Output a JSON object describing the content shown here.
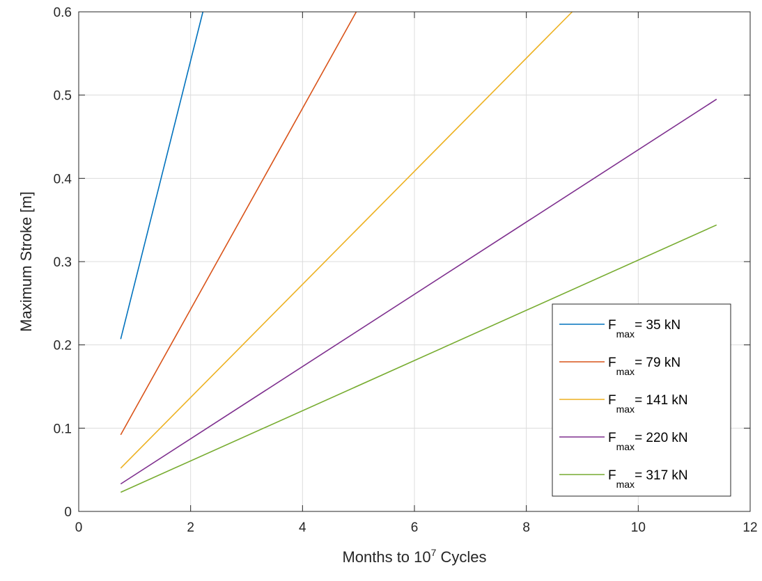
{
  "chart_data": {
    "type": "line",
    "title": "",
    "xlabel_prefix": "Months to 10",
    "xlabel_sup": "7",
    "xlabel_suffix": " Cycles",
    "ylabel": "Maximum Stroke [m]",
    "xlim": [
      0,
      12
    ],
    "ylim": [
      0,
      0.6
    ],
    "xticks": [
      0,
      2,
      4,
      6,
      8,
      10,
      12
    ],
    "xtick_labels": [
      "0",
      "2",
      "4",
      "6",
      "8",
      "10",
      "12"
    ],
    "yticks": [
      0,
      0.1,
      0.2,
      0.3,
      0.4,
      0.5,
      0.6
    ],
    "ytick_labels": [
      "0",
      "0.1",
      "0.2",
      "0.3",
      "0.4",
      "0.5",
      "0.6"
    ],
    "grid": true,
    "legend_position": "bottom-right",
    "legend_subscript": "max",
    "series": [
      {
        "name": "F_max = 35 kN",
        "label_main": "F",
        "label_rest": "= 35 kN",
        "color": "#0072BD",
        "points": [
          [
            0.75,
            0.207
          ],
          [
            2.22,
            0.6
          ]
        ]
      },
      {
        "name": "F_max = 79 kN",
        "label_main": "F",
        "label_rest": "= 79 kN",
        "color": "#D95319",
        "points": [
          [
            0.75,
            0.092
          ],
          [
            4.96,
            0.6
          ]
        ]
      },
      {
        "name": "F_max = 141 kN",
        "label_main": "F",
        "label_rest": "= 141 kN",
        "color": "#EDB120",
        "points": [
          [
            0.75,
            0.052
          ],
          [
            8.82,
            0.6
          ]
        ]
      },
      {
        "name": "F_max = 220 kN",
        "label_main": "F",
        "label_rest": "= 220 kN",
        "color": "#7E2F8E",
        "points": [
          [
            0.75,
            0.033
          ],
          [
            11.4,
            0.495
          ]
        ]
      },
      {
        "name": "F_max = 317 kN",
        "label_main": "F",
        "label_rest": "= 317 kN",
        "color": "#77AC30",
        "points": [
          [
            0.75,
            0.023
          ],
          [
            11.4,
            0.344
          ]
        ]
      }
    ]
  }
}
